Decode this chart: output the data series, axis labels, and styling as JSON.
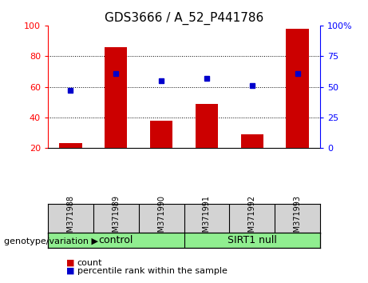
{
  "title": "GDS3666 / A_52_P441786",
  "samples": [
    "GSM371988",
    "GSM371989",
    "GSM371990",
    "GSM371991",
    "GSM371992",
    "GSM371993"
  ],
  "counts": [
    23,
    86,
    38,
    49,
    29,
    98
  ],
  "percentile_ranks": [
    47,
    61,
    55,
    57,
    51,
    61
  ],
  "bar_color": "#CC0000",
  "dot_color": "#0000CC",
  "left_ylim": [
    20,
    100
  ],
  "left_yticks": [
    20,
    40,
    60,
    80,
    100
  ],
  "right_ylim": [
    0,
    100
  ],
  "right_yticks": [
    0,
    25,
    50,
    75,
    100
  ],
  "right_yticklabels": [
    "0",
    "25",
    "50",
    "75",
    "100%"
  ],
  "grid_values": [
    40,
    60,
    80
  ],
  "background_color": "#ffffff",
  "label_bg": "#d3d3d3",
  "group_bg": "#90EE90",
  "groups_info": [
    {
      "label": "control",
      "start": 0,
      "end": 2
    },
    {
      "label": "SIRT1 null",
      "start": 3,
      "end": 5
    }
  ],
  "xlabel_group": "genotype/variation"
}
